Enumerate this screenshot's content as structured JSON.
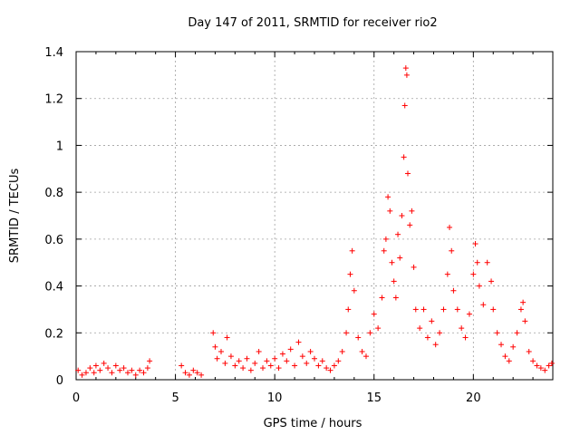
{
  "chart_data": {
    "type": "scatter",
    "title": "Day 147 of 2011, SRMTID for receiver rio2",
    "xlabel": "GPS time / hours",
    "ylabel": "SRMTID / TECUs",
    "xlim": [
      0,
      24
    ],
    "ylim": [
      0,
      1.4
    ],
    "xticks": [
      0,
      5,
      10,
      15,
      20
    ],
    "yticks": [
      0,
      0.2,
      0.4,
      0.6,
      0.8,
      1,
      1.2,
      1.4
    ],
    "xtick_labels": [
      "0",
      "5",
      "10",
      "15",
      "20"
    ],
    "ytick_labels": [
      "0",
      "0.2",
      "0.4",
      "0.6",
      "0.8",
      "1",
      "1.2",
      "1.4"
    ],
    "grid": true,
    "marker": "+",
    "series": [
      {
        "name": "SRMTID",
        "color": "#ff0000",
        "points": [
          [
            0.1,
            0.04
          ],
          [
            0.3,
            0.02
          ],
          [
            0.5,
            0.03
          ],
          [
            0.7,
            0.05
          ],
          [
            0.9,
            0.03
          ],
          [
            1.0,
            0.06
          ],
          [
            1.2,
            0.04
          ],
          [
            1.4,
            0.07
          ],
          [
            1.6,
            0.05
          ],
          [
            1.8,
            0.03
          ],
          [
            2.0,
            0.06
          ],
          [
            2.2,
            0.04
          ],
          [
            2.4,
            0.05
          ],
          [
            2.6,
            0.03
          ],
          [
            2.8,
            0.04
          ],
          [
            3.0,
            0.02
          ],
          [
            3.2,
            0.04
          ],
          [
            3.4,
            0.03
          ],
          [
            3.6,
            0.05
          ],
          [
            3.7,
            0.08
          ],
          [
            5.3,
            0.06
          ],
          [
            5.5,
            0.03
          ],
          [
            5.7,
            0.02
          ],
          [
            5.9,
            0.04
          ],
          [
            6.1,
            0.03
          ],
          [
            6.3,
            0.02
          ],
          [
            6.9,
            0.2
          ],
          [
            7.0,
            0.14
          ],
          [
            7.1,
            0.09
          ],
          [
            7.3,
            0.12
          ],
          [
            7.5,
            0.07
          ],
          [
            7.6,
            0.18
          ],
          [
            7.8,
            0.1
          ],
          [
            8.0,
            0.06
          ],
          [
            8.2,
            0.08
          ],
          [
            8.4,
            0.05
          ],
          [
            8.6,
            0.09
          ],
          [
            8.8,
            0.04
          ],
          [
            9.0,
            0.07
          ],
          [
            9.2,
            0.12
          ],
          [
            9.4,
            0.05
          ],
          [
            9.6,
            0.08
          ],
          [
            9.8,
            0.06
          ],
          [
            10.0,
            0.09
          ],
          [
            10.2,
            0.05
          ],
          [
            10.4,
            0.11
          ],
          [
            10.6,
            0.08
          ],
          [
            10.8,
            0.13
          ],
          [
            11.0,
            0.06
          ],
          [
            11.2,
            0.16
          ],
          [
            11.4,
            0.1
          ],
          [
            11.6,
            0.07
          ],
          [
            11.8,
            0.12
          ],
          [
            12.0,
            0.09
          ],
          [
            12.2,
            0.06
          ],
          [
            12.4,
            0.08
          ],
          [
            12.6,
            0.05
          ],
          [
            12.8,
            0.04
          ],
          [
            13.0,
            0.06
          ],
          [
            13.2,
            0.08
          ],
          [
            13.4,
            0.12
          ],
          [
            13.6,
            0.2
          ],
          [
            13.7,
            0.3
          ],
          [
            13.8,
            0.45
          ],
          [
            13.9,
            0.55
          ],
          [
            14.0,
            0.38
          ],
          [
            14.2,
            0.18
          ],
          [
            14.4,
            0.12
          ],
          [
            14.6,
            0.1
          ],
          [
            14.8,
            0.2
          ],
          [
            15.0,
            0.28
          ],
          [
            15.2,
            0.22
          ],
          [
            15.4,
            0.35
          ],
          [
            15.5,
            0.55
          ],
          [
            15.6,
            0.6
          ],
          [
            15.7,
            0.78
          ],
          [
            15.8,
            0.72
          ],
          [
            15.9,
            0.5
          ],
          [
            16.0,
            0.42
          ],
          [
            16.1,
            0.35
          ],
          [
            16.2,
            0.62
          ],
          [
            16.3,
            0.52
          ],
          [
            16.4,
            0.7
          ],
          [
            16.5,
            0.95
          ],
          [
            16.55,
            1.17
          ],
          [
            16.6,
            1.33
          ],
          [
            16.65,
            1.3
          ],
          [
            16.7,
            0.88
          ],
          [
            16.8,
            0.66
          ],
          [
            16.9,
            0.72
          ],
          [
            17.0,
            0.48
          ],
          [
            17.1,
            0.3
          ],
          [
            17.3,
            0.22
          ],
          [
            17.5,
            0.3
          ],
          [
            17.7,
            0.18
          ],
          [
            17.9,
            0.25
          ],
          [
            18.1,
            0.15
          ],
          [
            18.3,
            0.2
          ],
          [
            18.5,
            0.3
          ],
          [
            18.7,
            0.45
          ],
          [
            18.8,
            0.65
          ],
          [
            18.9,
            0.55
          ],
          [
            19.0,
            0.38
          ],
          [
            19.2,
            0.3
          ],
          [
            19.4,
            0.22
          ],
          [
            19.6,
            0.18
          ],
          [
            19.8,
            0.28
          ],
          [
            20.0,
            0.45
          ],
          [
            20.1,
            0.58
          ],
          [
            20.2,
            0.5
          ],
          [
            20.3,
            0.4
          ],
          [
            20.5,
            0.32
          ],
          [
            20.7,
            0.5
          ],
          [
            20.9,
            0.42
          ],
          [
            21.0,
            0.3
          ],
          [
            21.2,
            0.2
          ],
          [
            21.4,
            0.15
          ],
          [
            21.6,
            0.1
          ],
          [
            21.8,
            0.08
          ],
          [
            22.0,
            0.14
          ],
          [
            22.2,
            0.2
          ],
          [
            22.4,
            0.3
          ],
          [
            22.5,
            0.33
          ],
          [
            22.6,
            0.25
          ],
          [
            22.8,
            0.12
          ],
          [
            23.0,
            0.08
          ],
          [
            23.2,
            0.06
          ],
          [
            23.4,
            0.05
          ],
          [
            23.6,
            0.04
          ],
          [
            23.8,
            0.06
          ],
          [
            23.95,
            0.07
          ]
        ]
      }
    ]
  }
}
